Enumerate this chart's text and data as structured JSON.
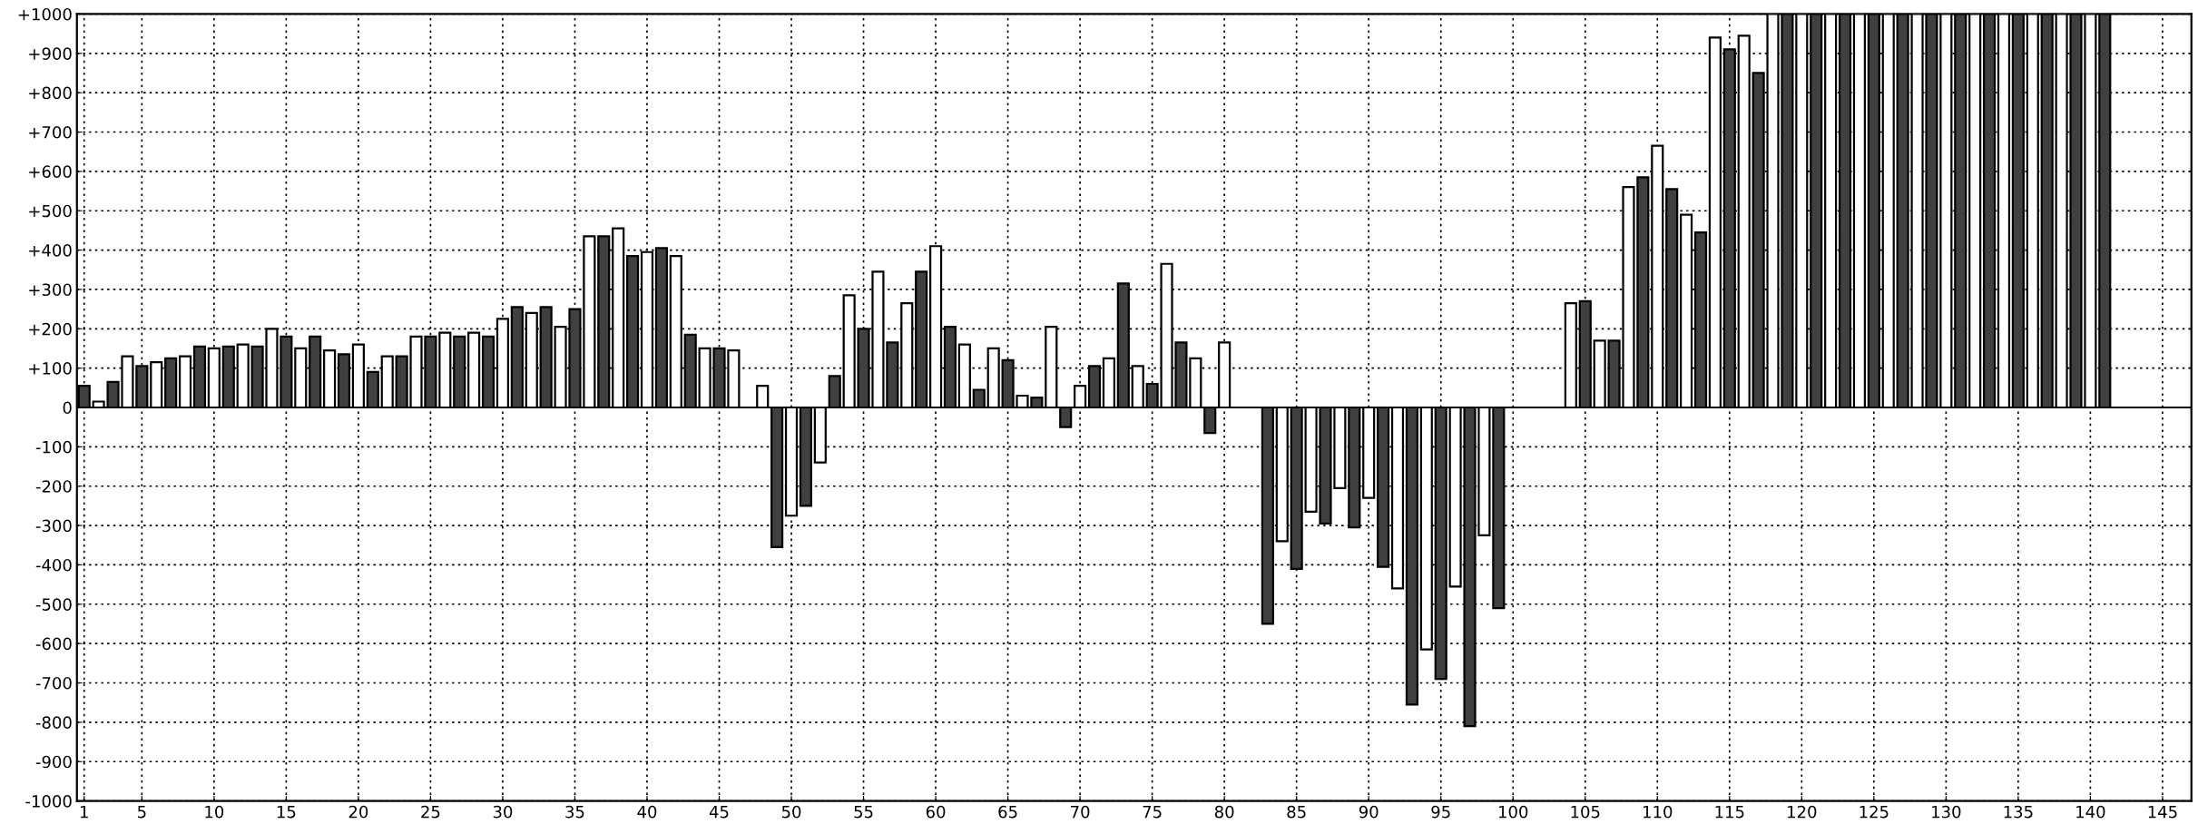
{
  "chart_data": {
    "type": "bar",
    "x": [
      1,
      2,
      3,
      4,
      5,
      6,
      7,
      8,
      9,
      10,
      11,
      12,
      13,
      14,
      15,
      16,
      17,
      18,
      19,
      20,
      21,
      22,
      23,
      24,
      25,
      26,
      27,
      28,
      29,
      30,
      31,
      32,
      33,
      34,
      35,
      36,
      37,
      38,
      39,
      40,
      41,
      42,
      43,
      44,
      45,
      46,
      47,
      48,
      49,
      50,
      51,
      52,
      53,
      54,
      55,
      56,
      57,
      58,
      59,
      60,
      61,
      62,
      63,
      64,
      65,
      66,
      67,
      68,
      69,
      70,
      71,
      72,
      73,
      74,
      75,
      76,
      77,
      78,
      79,
      80,
      81,
      82,
      83,
      84,
      85,
      86,
      87,
      88,
      89,
      90,
      91,
      92,
      93,
      94,
      95,
      96,
      97,
      98,
      99,
      100,
      101,
      102,
      103,
      104,
      105,
      106,
      107,
      108,
      109,
      110,
      111,
      112,
      113,
      114,
      115,
      116,
      117,
      118,
      119,
      120,
      121,
      122,
      123,
      124,
      125,
      126,
      127,
      128,
      129,
      130,
      131,
      132,
      133,
      134,
      135,
      136,
      137,
      138,
      139,
      140,
      141
    ],
    "values": [
      55,
      15,
      65,
      130,
      105,
      115,
      125,
      130,
      155,
      150,
      155,
      160,
      155,
      200,
      180,
      150,
      180,
      145,
      135,
      160,
      90,
      130,
      130,
      180,
      180,
      190,
      180,
      190,
      180,
      225,
      255,
      240,
      255,
      205,
      250,
      435,
      435,
      455,
      385,
      395,
      405,
      385,
      185,
      150,
      150,
      145,
      null,
      55,
      -355,
      -275,
      -250,
      -140,
      80,
      285,
      200,
      345,
      165,
      265,
      345,
      410,
      205,
      160,
      45,
      150,
      120,
      30,
      25,
      205,
      -50,
      55,
      105,
      125,
      315,
      105,
      60,
      365,
      165,
      125,
      -65,
      165,
      null,
      null,
      -550,
      -340,
      -410,
      -265,
      -295,
      -205,
      -305,
      -230,
      -405,
      -460,
      -755,
      -615,
      -690,
      -455,
      -810,
      -325,
      -510,
      null,
      null,
      null,
      null,
      265,
      270,
      170,
      170,
      560,
      585,
      665,
      555,
      490,
      445,
      940,
      910,
      945,
      850,
      1000,
      1000,
      1000,
      1000,
      1000,
      1000,
      1000,
      1000,
      1000,
      1000,
      1000,
      1000,
      1000,
      1000,
      1000,
      1000,
      1000,
      1000,
      1000,
      1000,
      1000,
      1000,
      1000,
      1000
    ],
    "colors": [
      "#404040",
      "#ffffff",
      "#404040",
      "#ffffff",
      "#404040",
      "#ffffff",
      "#404040",
      "#ffffff",
      "#404040",
      "#ffffff",
      "#404040",
      "#ffffff",
      "#404040",
      "#ffffff",
      "#404040",
      "#ffffff",
      "#404040",
      "#ffffff",
      "#404040",
      "#ffffff",
      "#404040",
      "#ffffff",
      "#404040",
      "#ffffff",
      "#404040",
      "#ffffff",
      "#404040",
      "#ffffff",
      "#404040",
      "#ffffff",
      "#404040",
      "#ffffff",
      "#404040",
      "#ffffff",
      "#404040",
      "#ffffff",
      "#404040",
      "#ffffff",
      "#404040",
      "#ffffff",
      "#404040",
      "#ffffff",
      "#404040",
      "#ffffff",
      "#404040",
      "#ffffff",
      "#404040",
      "#ffffff",
      "#404040",
      "#ffffff",
      "#404040",
      "#ffffff",
      "#404040",
      "#ffffff",
      "#404040",
      "#ffffff",
      "#404040",
      "#ffffff",
      "#404040",
      "#ffffff",
      "#404040",
      "#ffffff",
      "#404040",
      "#ffffff",
      "#404040",
      "#ffffff",
      "#404040",
      "#ffffff",
      "#404040",
      "#ffffff",
      "#404040",
      "#ffffff",
      "#404040",
      "#ffffff",
      "#404040",
      "#ffffff",
      "#404040",
      "#ffffff",
      "#404040",
      "#ffffff",
      "#404040",
      "#ffffff",
      "#404040",
      "#ffffff",
      "#404040",
      "#ffffff",
      "#404040",
      "#ffffff",
      "#404040",
      "#ffffff",
      "#404040",
      "#ffffff",
      "#404040",
      "#ffffff",
      "#404040",
      "#ffffff",
      "#404040",
      "#ffffff",
      "#404040",
      "#ffffff",
      "#404040",
      "#ffffff",
      "#404040",
      "#ffffff",
      "#404040",
      "#ffffff",
      "#404040",
      "#ffffff",
      "#404040",
      "#ffffff",
      "#404040",
      "#ffffff",
      "#404040",
      "#ffffff",
      "#404040",
      "#ffffff",
      "#404040",
      "#ffffff",
      "#404040",
      "#ffffff",
      "#404040",
      "#ffffff",
      "#404040",
      "#ffffff",
      "#404040",
      "#ffffff",
      "#404040",
      "#ffffff",
      "#404040",
      "#ffffff",
      "#404040",
      "#ffffff",
      "#404040",
      "#ffffff",
      "#404040",
      "#ffffff",
      "#404040",
      "#ffffff",
      "#404040",
      "#ffffff",
      "#404040"
    ],
    "xlim": [
      0.5,
      147
    ],
    "xticks": [
      1,
      5,
      10,
      15,
      20,
      25,
      30,
      35,
      40,
      45,
      50,
      55,
      60,
      65,
      70,
      75,
      80,
      85,
      90,
      95,
      100,
      105,
      110,
      115,
      120,
      125,
      130,
      135,
      140,
      145
    ],
    "ylim": [
      -1000,
      1000
    ],
    "yticks": [
      {
        "value": -1000,
        "label": "-1000"
      },
      {
        "value": -900,
        "label": "-900"
      },
      {
        "value": -800,
        "label": "-800"
      },
      {
        "value": -700,
        "label": "-700"
      },
      {
        "value": -600,
        "label": "-600"
      },
      {
        "value": -500,
        "label": "-500"
      },
      {
        "value": -400,
        "label": "-400"
      },
      {
        "value": -300,
        "label": "-300"
      },
      {
        "value": -200,
        "label": "-200"
      },
      {
        "value": -100,
        "label": "-100"
      },
      0,
      {
        "value": 100,
        "label": "+100"
      },
      {
        "value": 200,
        "label": "+200"
      },
      {
        "value": 300,
        "label": "+300"
      },
      {
        "value": 400,
        "label": "+400"
      },
      {
        "value": 500,
        "label": "+500"
      },
      {
        "value": 600,
        "label": "+600"
      },
      {
        "value": 700,
        "label": "+700"
      },
      {
        "value": 800,
        "label": "+800"
      },
      {
        "value": 900,
        "label": "+900"
      },
      {
        "value": 1000,
        "label": "+1000"
      }
    ],
    "grid": true
  }
}
